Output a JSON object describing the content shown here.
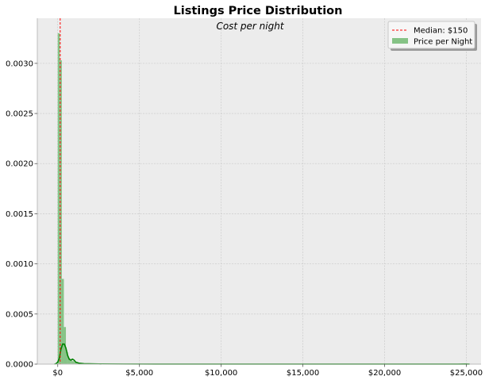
{
  "chart_data": {
    "type": "bar",
    "title": "Listings Price Distribution",
    "subtitle": "Cost per night",
    "xlabel": "",
    "ylabel": "",
    "xlim": [
      -1250,
      25900
    ],
    "ylim": [
      0,
      0.00345
    ],
    "x_ticks": [
      {
        "value": 0,
        "label": "$0"
      },
      {
        "value": 5000,
        "label": "$5,000"
      },
      {
        "value": 10000,
        "label": "$10,000"
      },
      {
        "value": 15000,
        "label": "$15,000"
      },
      {
        "value": 20000,
        "label": "$20,000"
      },
      {
        "value": 25000,
        "label": "$25,000"
      }
    ],
    "y_ticks": [
      {
        "value": 0,
        "label": "0.0000"
      },
      {
        "value": 0.0005,
        "label": "0.0005"
      },
      {
        "value": 0.001,
        "label": "0.0010"
      },
      {
        "value": 0.0015,
        "label": "0.0015"
      },
      {
        "value": 0.002,
        "label": "0.0020"
      },
      {
        "value": 0.0025,
        "label": "0.0025"
      },
      {
        "value": 0.003,
        "label": "0.0030"
      }
    ],
    "grid": true,
    "legend_position": "top-right",
    "median": {
      "value": 150,
      "label": "Median: $150",
      "color": "#ff0000"
    },
    "histogram": {
      "name": "Price per Night",
      "color": "#86c386",
      "bin_width": 125,
      "bins": [
        {
          "x0": 0,
          "density": 0.0033
        },
        {
          "x0": 125,
          "density": 0.00303
        },
        {
          "x0": 250,
          "density": 0.00085
        },
        {
          "x0": 375,
          "density": 0.00037
        },
        {
          "x0": 500,
          "density": 0.00012
        },
        {
          "x0": 625,
          "density": 6e-05
        },
        {
          "x0": 750,
          "density": 4e-05
        },
        {
          "x0": 875,
          "density": 3e-05
        },
        {
          "x0": 1000,
          "density": 2e-05
        },
        {
          "x0": 1125,
          "density": 1.5e-05
        },
        {
          "x0": 1250,
          "density": 1e-05
        }
      ]
    },
    "kde": {
      "color": "#008000",
      "points": [
        [
          -200,
          0.0
        ],
        [
          -100,
          5e-06
        ],
        [
          0,
          2e-05
        ],
        [
          100,
          6e-05
        ],
        [
          200,
          0.00015
        ],
        [
          300,
          0.0002
        ],
        [
          400,
          0.0002
        ],
        [
          500,
          0.00016
        ],
        [
          600,
          9e-05
        ],
        [
          700,
          5e-05
        ],
        [
          800,
          4e-05
        ],
        [
          900,
          5e-05
        ],
        [
          1000,
          4e-05
        ],
        [
          1100,
          2e-05
        ],
        [
          1300,
          1e-05
        ],
        [
          1600,
          5e-06
        ],
        [
          2500,
          2e-06
        ],
        [
          4000,
          1e-06
        ],
        [
          6000,
          8e-07
        ],
        [
          10000,
          6e-07
        ],
        [
          15000,
          5e-07
        ],
        [
          20000,
          5e-07
        ],
        [
          24500,
          8e-07
        ],
        [
          24900,
          1.5e-06
        ],
        [
          25200,
          5e-07
        ]
      ]
    }
  }
}
